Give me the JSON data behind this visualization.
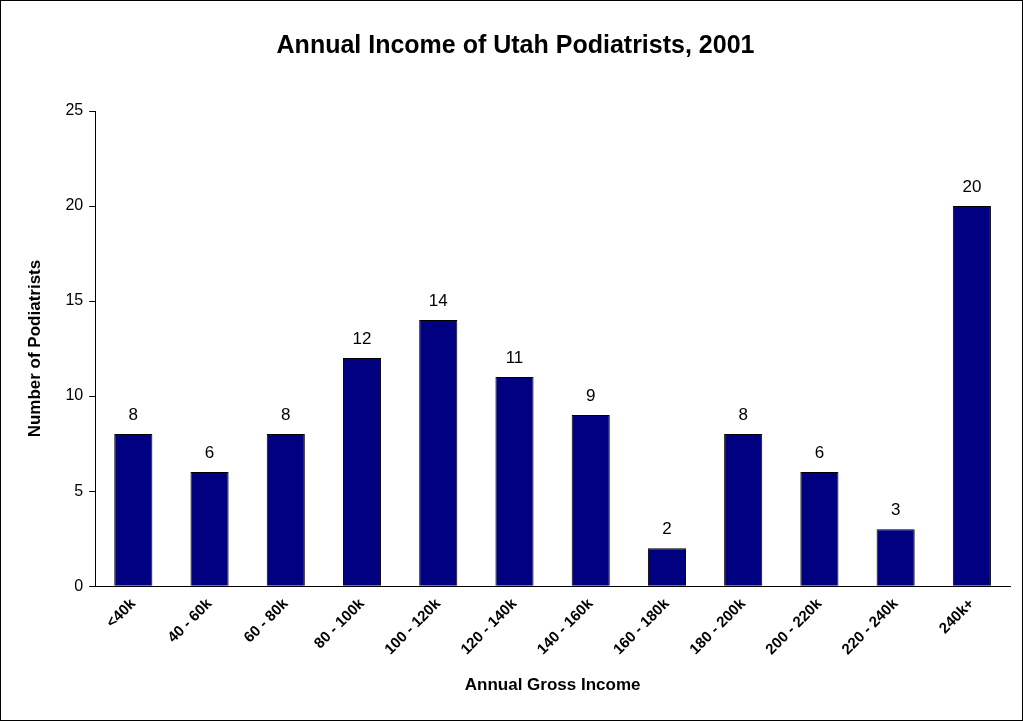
{
  "chart_data": {
    "type": "bar",
    "title": "Annual Income of Utah Podiatrists, 2001",
    "xlabel": "Annual Gross Income",
    "ylabel": "Number of Podiatrists",
    "categories": [
      "<40k",
      "40 - 60k",
      "60 - 80k",
      "80 - 100k",
      "100 - 120k",
      "120 - 140k",
      "140 - 160k",
      "160 - 180k",
      "180 - 200k",
      "200 - 220k",
      "220 - 240k",
      "240k+"
    ],
    "values": [
      8,
      6,
      8,
      12,
      14,
      11,
      9,
      2,
      8,
      6,
      3,
      20
    ],
    "color": "#000080",
    "ylim": [
      0,
      25
    ],
    "yticks": [
      0,
      5,
      10,
      15,
      20,
      25
    ],
    "grid": false,
    "legend": false,
    "data_labels": true
  }
}
